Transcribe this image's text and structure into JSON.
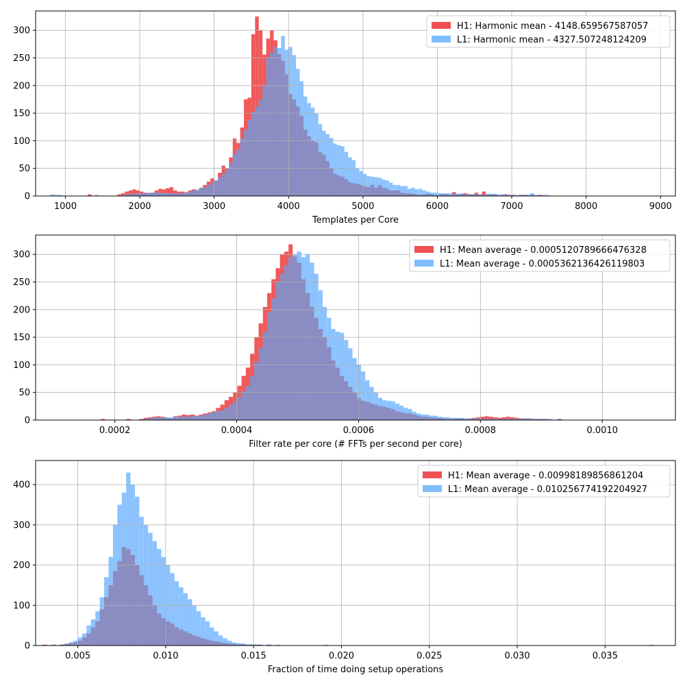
{
  "chart_data": [
    {
      "type": "histogram",
      "xlabel": "Templates per Core",
      "ylabel": "",
      "xlim": [
        600,
        9200
      ],
      "ylim": [
        0,
        335
      ],
      "xticks": [
        1000,
        2000,
        3000,
        4000,
        5000,
        6000,
        7000,
        8000,
        9000
      ],
      "xtick_labels": [
        "1000",
        "2000",
        "3000",
        "4000",
        "5000",
        "6000",
        "7000",
        "8000",
        "9000"
      ],
      "yticks": [
        0,
        50,
        100,
        150,
        200,
        250,
        300
      ],
      "ytick_labels": [
        "0",
        "50",
        "100",
        "150",
        "200",
        "250",
        "300"
      ],
      "grid": true,
      "legend_position": "top-right",
      "bins": {
        "start": 600,
        "width": 50,
        "series": [
          {
            "name": "H1: Harmonic mean  - 4148.659567587057",
            "color": "#f05050",
            "counts": [
              0,
              0,
              0,
              0,
              0,
              0,
              0,
              0,
              0,
              0,
              0,
              0,
              0,
              0,
              3,
              0,
              0,
              0,
              0,
              0,
              0,
              0,
              3,
              5,
              8,
              10,
              12,
              10,
              8,
              6,
              5,
              6,
              10,
              13,
              12,
              14,
              16,
              10,
              8,
              8,
              7,
              10,
              12,
              10,
              15,
              20,
              26,
              32,
              28,
              42,
              55,
              50,
              70,
              104,
              96,
              124,
              175,
              178,
              293,
              325,
              300,
              256,
              285,
              300,
              282,
              257,
              245,
              220,
              185,
              175,
              162,
              145,
              120,
              108,
              100,
              97,
              80,
              75,
              63,
              50,
              40,
              37,
              35,
              30,
              25,
              23,
              22,
              20,
              18,
              16,
              20,
              15,
              20,
              15,
              13,
              10,
              10,
              10,
              6,
              5,
              5,
              4,
              3,
              2,
              3,
              4,
              3,
              2,
              2,
              3,
              3,
              2,
              7,
              3,
              4,
              5,
              3,
              3,
              6,
              3,
              8,
              2,
              3,
              3,
              0,
              2,
              3,
              2,
              2,
              0,
              2,
              2,
              0,
              2,
              0,
              2,
              0,
              0,
              0,
              0,
              0,
              0,
              0,
              0,
              0,
              0,
              0,
              0,
              0,
              0,
              0
            ]
          },
          {
            "name": "L1: Harmonic mean  - 4327.507248124209",
            "color": "#80bdff",
            "counts": [
              0,
              0,
              0,
              0,
              3,
              2,
              2,
              0,
              0,
              0,
              0,
              0,
              0,
              0,
              0,
              0,
              2,
              0,
              0,
              0,
              0,
              0,
              0,
              2,
              3,
              3,
              4,
              5,
              5,
              5,
              6,
              6,
              6,
              6,
              5,
              5,
              5,
              5,
              5,
              5,
              6,
              8,
              10,
              12,
              14,
              16,
              20,
              24,
              28,
              34,
              40,
              48,
              60,
              76,
              84,
              104,
              120,
              138,
              152,
              162,
              175,
              200,
              250,
              260,
              270,
              268,
              290,
              265,
              270,
              255,
              230,
              208,
              180,
              168,
              160,
              150,
              130,
              118,
              112,
              105,
              95,
              92,
              90,
              80,
              70,
              65,
              50,
              45,
              40,
              36,
              35,
              34,
              33,
              30,
              28,
              24,
              20,
              20,
              18,
              18,
              13,
              15,
              12,
              13,
              10,
              8,
              6,
              6,
              5,
              5,
              5,
              5,
              4,
              4,
              4,
              3,
              4,
              3,
              3,
              3,
              2,
              4,
              4,
              4,
              3,
              3,
              2,
              2,
              2,
              2,
              2,
              2,
              3,
              5,
              2,
              0,
              2,
              2,
              0,
              0,
              0,
              0,
              0,
              0,
              0,
              0,
              0,
              0,
              0,
              0,
              0,
              0,
              0,
              0,
              0,
              0,
              0
            ]
          }
        ]
      }
    },
    {
      "type": "histogram",
      "xlabel": "Filter rate per core (# FFTs per second per core)",
      "ylabel": "",
      "xlim": [
        7e-05,
        0.00112
      ],
      "ylim": [
        0,
        335
      ],
      "xticks": [
        0.0002,
        0.0004,
        0.0006,
        0.0008,
        0.001
      ],
      "xtick_labels": [
        "0.0002",
        "0.0004",
        "0.0006",
        "0.0008",
        "0.0010"
      ],
      "yticks": [
        0,
        50,
        100,
        150,
        200,
        250,
        300
      ],
      "ytick_labels": [
        "0",
        "50",
        "100",
        "150",
        "200",
        "250",
        "300"
      ],
      "grid": true,
      "legend_position": "top-right",
      "bins": {
        "start": 0.0001,
        "width": 7e-06,
        "series": [
          {
            "name": "H1: Mean average - 0.0005120789666476328",
            "color": "#f05050",
            "counts": [
              0,
              0,
              0,
              0,
              0,
              0,
              0,
              0,
              0,
              0,
              0,
              2,
              0,
              0,
              0,
              0,
              0,
              2,
              0,
              0,
              2,
              4,
              5,
              6,
              7,
              6,
              4,
              3,
              7,
              8,
              10,
              9,
              10,
              8,
              10,
              12,
              14,
              16,
              22,
              28,
              36,
              42,
              50,
              62,
              80,
              95,
              120,
              150,
              175,
              205,
              230,
              255,
              275,
              300,
              305,
              318,
              296,
              285,
              255,
              230,
              205,
              185,
              165,
              150,
              132,
              108,
              95,
              80,
              70,
              60,
              50,
              40,
              35,
              33,
              30,
              28,
              25,
              24,
              22,
              20,
              16,
              14,
              12,
              12,
              10,
              8,
              6,
              6,
              5,
              4,
              4,
              3,
              2,
              2,
              3,
              3,
              2,
              3,
              4,
              5,
              6,
              7,
              6,
              5,
              4,
              5,
              6,
              5,
              4,
              3,
              3,
              3,
              2,
              2,
              2,
              2,
              0,
              0,
              2,
              0,
              0,
              0,
              0,
              0,
              0,
              0,
              0,
              0,
              0,
              0,
              0,
              0,
              0,
              0
            ]
          },
          {
            "name": "L1: Mean average - 0.0005362136426119803",
            "color": "#80bdff",
            "counts": [
              0,
              0,
              0,
              0,
              0,
              0,
              0,
              0,
              0,
              0,
              0,
              0,
              0,
              0,
              0,
              0,
              0,
              0,
              0,
              0,
              0,
              2,
              3,
              4,
              5,
              5,
              5,
              5,
              6,
              6,
              6,
              6,
              7,
              7,
              8,
              10,
              12,
              14,
              16,
              18,
              22,
              28,
              34,
              42,
              52,
              62,
              80,
              105,
              130,
              160,
              195,
              220,
              250,
              265,
              280,
              295,
              300,
              305,
              295,
              300,
              285,
              265,
              235,
              205,
              185,
              165,
              160,
              158,
              145,
              130,
              112,
              100,
              88,
              72,
              60,
              50,
              40,
              36,
              35,
              34,
              30,
              26,
              22,
              20,
              15,
              12,
              10,
              10,
              8,
              8,
              6,
              5,
              5,
              4,
              4,
              4,
              3,
              3,
              3,
              3,
              2,
              2,
              2,
              2,
              2,
              2,
              2,
              2,
              2,
              2,
              3,
              3,
              2,
              2,
              2,
              2,
              2,
              0,
              2,
              0,
              0,
              0,
              0,
              0,
              0,
              0,
              0,
              0,
              0,
              0,
              0,
              0,
              0,
              0
            ]
          }
        ]
      }
    },
    {
      "type": "histogram",
      "xlabel": "Fraction of time doing setup operations",
      "ylabel": "",
      "xlim": [
        0.0026,
        0.039
      ],
      "ylim": [
        0,
        460
      ],
      "xticks": [
        0.005,
        0.01,
        0.015,
        0.02,
        0.025,
        0.03,
        0.035
      ],
      "xtick_labels": [
        "0.005",
        "0.010",
        "0.015",
        "0.020",
        "0.025",
        "0.030",
        "0.035"
      ],
      "yticks": [
        0,
        100,
        200,
        300,
        400
      ],
      "ytick_labels": [
        "0",
        "100",
        "200",
        "300",
        "400"
      ],
      "grid": true,
      "legend_position": "top-right",
      "bins": {
        "start": 0.003,
        "width": 0.00025,
        "series": [
          {
            "name": "H1: Mean average - 0.00998189856861204",
            "color": "#f05050",
            "counts": [
              2,
              0,
              2,
              0,
              2,
              4,
              6,
              8,
              12,
              20,
              30,
              45,
              60,
              90,
              120,
              150,
              185,
              210,
              245,
              240,
              225,
              200,
              175,
              150,
              125,
              100,
              80,
              68,
              60,
              55,
              45,
              40,
              35,
              30,
              25,
              22,
              18,
              15,
              12,
              10,
              8,
              6,
              5,
              4,
              3,
              3,
              2,
              2,
              2,
              2,
              0,
              2,
              0,
              0,
              0,
              0,
              0,
              0,
              0,
              0,
              0,
              0,
              0,
              0,
              0,
              0,
              0,
              0,
              0,
              0,
              0,
              0,
              0,
              0,
              0,
              0,
              0,
              0,
              0,
              0,
              0,
              0,
              0,
              0,
              0,
              0,
              0,
              0,
              0,
              0,
              0,
              0,
              0,
              0,
              0,
              0,
              0,
              0,
              0,
              0,
              0,
              0,
              0,
              0,
              0,
              0,
              0,
              0,
              0,
              0,
              0,
              0,
              0,
              0,
              0,
              0,
              0,
              0,
              0,
              0,
              0,
              0,
              0,
              0,
              0,
              0,
              0,
              0,
              0,
              0,
              0,
              0,
              0,
              0,
              0,
              0,
              0,
              0,
              0,
              0
            ]
          },
          {
            "name": "L1: Mean average - 0.010256774192204927",
            "color": "#80bdff",
            "counts": [
              0,
              0,
              2,
              0,
              3,
              5,
              8,
              12,
              20,
              30,
              50,
              65,
              85,
              120,
              170,
              220,
              300,
              350,
              380,
              430,
              400,
              370,
              320,
              300,
              280,
              260,
              240,
              220,
              200,
              180,
              160,
              145,
              130,
              115,
              100,
              85,
              70,
              60,
              45,
              35,
              25,
              18,
              12,
              8,
              6,
              5,
              3,
              3,
              2,
              2,
              0,
              3,
              0,
              2,
              0,
              0,
              0,
              0,
              0,
              0,
              0,
              0,
              0,
              0,
              2,
              0,
              0,
              0,
              0,
              0,
              0,
              0,
              0,
              0,
              0,
              0,
              0,
              0,
              0,
              0,
              0,
              0,
              0,
              0,
              0,
              0,
              0,
              0,
              0,
              0,
              0,
              0,
              0,
              0,
              0,
              0,
              0,
              0,
              0,
              0,
              0,
              0,
              0,
              0,
              0,
              0,
              0,
              0,
              0,
              0,
              0,
              0,
              0,
              0,
              0,
              0,
              0,
              0,
              0,
              0,
              0,
              0,
              0,
              0,
              0,
              0,
              0,
              0,
              0,
              0,
              0,
              0,
              0,
              0,
              0,
              0,
              0,
              0,
              2,
              0
            ]
          }
        ]
      }
    }
  ]
}
